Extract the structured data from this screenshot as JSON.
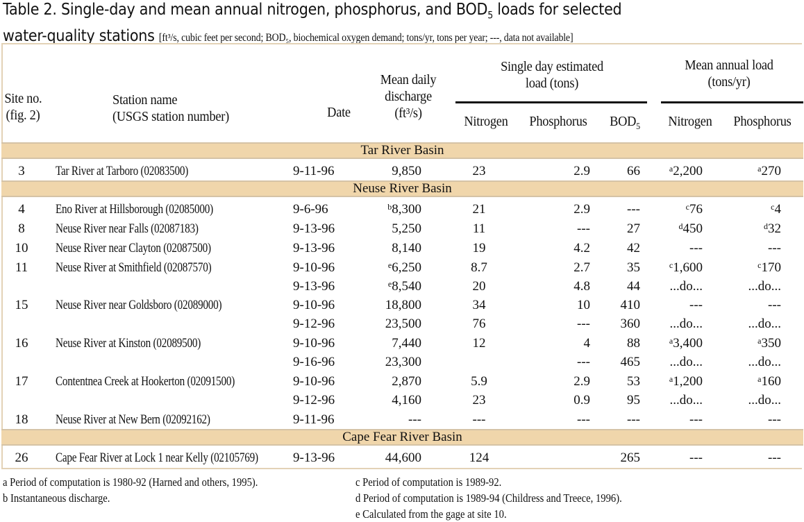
{
  "title": {
    "main_line1": "Table 2. Single-day and mean annual nitrogen, phosphorus, and BOD",
    "main_line1_sub": "5",
    "main_line1_end": " loads for selected",
    "main_line2": "water-quality stations",
    "note": "[ft³/s, cubic feet per second; BOD₅, biochemical oxygen demand; tons/yr, tons per year; ---, data not available]"
  },
  "headers": {
    "site_line1": "Site no.",
    "site_line2": "(fig. 2)",
    "station_line1": "Station name",
    "station_line2": "(USGS station number)",
    "date": "Date",
    "discharge_line1": "Mean daily",
    "discharge_line2": "discharge",
    "discharge_line3": "(ft³/s)",
    "single_day_line1": "Single day estimated",
    "single_day_line2": "load (tons)",
    "mean_annual_line1": "Mean annual load",
    "mean_annual_line2": "(tons/yr)",
    "nitrogen": "Nitrogen",
    "phosphorus": "Phosphorus",
    "bod": "BOD",
    "bod_sub": "5",
    "mean_nitrogen": "Nitrogen",
    "mean_phosphorus": "Phosphorus"
  },
  "rows": [
    {
      "band": "Tar River Basin"
    },
    {
      "site": "3",
      "station": "Tar River at Tarboro (02083500)",
      "date": "9-11-96",
      "discharge": {
        "v": "9,850"
      },
      "nitrogen": "23",
      "phosphorus": "2.9",
      "bod": "66",
      "mean_n": {
        "sup": "a",
        "v": "2,200"
      },
      "mean_p": {
        "sup": "a",
        "v": "270"
      }
    },
    {
      "band": "Neuse River Basin"
    },
    {
      "site": "4",
      "station": "Eno River at Hillsborough (02085000)",
      "date": "9-6-96",
      "discharge": {
        "sup": "b",
        "v": "8,300"
      },
      "nitrogen": "21",
      "phosphorus": "2.9",
      "bod": "---",
      "mean_n": {
        "sup": "c",
        "v": "76"
      },
      "mean_p": {
        "sup": "c",
        "v": "4"
      }
    },
    {
      "site": "8",
      "station": "Neuse River near Falls (02087183)",
      "date": "9-13-96",
      "discharge": {
        "v": "5,250"
      },
      "nitrogen": "11",
      "phosphorus": "---",
      "bod": "27",
      "mean_n": {
        "sup": "d",
        "v": "450"
      },
      "mean_p": {
        "sup": "d",
        "v": "32"
      }
    },
    {
      "site": "10",
      "station": "Neuse River near Clayton (02087500)",
      "date": "9-13-96",
      "discharge": {
        "v": "8,140"
      },
      "nitrogen": "19",
      "phosphorus": "4.2",
      "bod": "42",
      "mean_n": {
        "v": "---"
      },
      "mean_p": {
        "v": "---"
      }
    },
    {
      "site": "11",
      "station": "Neuse River at Smithfield (02087570)",
      "date": "9-10-96",
      "discharge": {
        "sup": "e",
        "v": "6,250"
      },
      "nitrogen": "8.7",
      "phosphorus": "2.7",
      "bod": "35",
      "mean_n": {
        "sup": "c",
        "v": "1,600"
      },
      "mean_p": {
        "sup": "c",
        "v": "170"
      }
    },
    {
      "site": "",
      "station": "",
      "date": "9-13-96",
      "discharge": {
        "sup": "e",
        "v": "8,540"
      },
      "nitrogen": "20",
      "phosphorus": "4.8",
      "bod": "44",
      "mean_n": {
        "v": "...do..."
      },
      "mean_p": {
        "v": "...do..."
      }
    },
    {
      "site": "15",
      "station": "Neuse River near Goldsboro (02089000)",
      "date": "9-10-96",
      "discharge": {
        "v": "18,800"
      },
      "nitrogen": "34",
      "phosphorus": "10",
      "bod": "410",
      "mean_n": {
        "v": "---"
      },
      "mean_p": {
        "v": "---"
      }
    },
    {
      "site": "",
      "station": "",
      "date": "9-12-96",
      "discharge": {
        "v": "23,500"
      },
      "nitrogen": "76",
      "phosphorus": "---",
      "bod": "360",
      "mean_n": {
        "v": "...do..."
      },
      "mean_p": {
        "v": "...do..."
      }
    },
    {
      "site": "16",
      "station": "Neuse River at Kinston (02089500)",
      "date": "9-10-96",
      "discharge": {
        "v": "7,440"
      },
      "nitrogen": "12",
      "phosphorus": "4",
      "bod": "88",
      "mean_n": {
        "sup": "a",
        "v": "3,400"
      },
      "mean_p": {
        "sup": "a",
        "v": "350"
      }
    },
    {
      "site": "",
      "station": "",
      "date": "9-16-96",
      "discharge": {
        "v": "23,300"
      },
      "nitrogen": "",
      "phosphorus": "---",
      "bod": "465",
      "mean_n": {
        "v": "...do..."
      },
      "mean_p": {
        "v": "...do..."
      }
    },
    {
      "site": "17",
      "station": "Contentnea Creek at Hookerton (02091500)",
      "date": "9-10-96",
      "discharge": {
        "v": "2,870"
      },
      "nitrogen": "5.9",
      "phosphorus": "2.9",
      "bod": "53",
      "mean_n": {
        "sup": "a",
        "v": "1,200"
      },
      "mean_p": {
        "sup": "a",
        "v": "160"
      }
    },
    {
      "site": "",
      "station": "",
      "date": "9-12-96",
      "discharge": {
        "v": "4,160"
      },
      "nitrogen": "23",
      "phosphorus": "0.9",
      "bod": "95",
      "mean_n": {
        "v": "...do..."
      },
      "mean_p": {
        "v": "...do..."
      }
    },
    {
      "site": "18",
      "station": "Neuse River at New Bern (02092162)",
      "date": "9-11-96",
      "discharge": {
        "v": "---"
      },
      "nitrogen": "---",
      "phosphorus": "---",
      "bod": "---",
      "mean_n": {
        "v": "---"
      },
      "mean_p": {
        "v": "---"
      }
    },
    {
      "band": "Cape Fear River Basin"
    },
    {
      "site": "26",
      "station": "Cape Fear River at Lock 1 near Kelly (02105769)",
      "date": "9-13-96",
      "discharge": {
        "v": "44,600"
      },
      "nitrogen": "124",
      "phosphorus": "",
      "bod": "265",
      "mean_n": {
        "v": "---"
      },
      "mean_p": {
        "v": "---"
      }
    }
  ],
  "footnotes": {
    "a": "a Period of computation is 1980-92 (Harned and others, 1995).",
    "b": "b Instantaneous discharge.",
    "c": "c Period of computation is 1989-92.",
    "d": "d Period of computation is 1989-94 (Childress and Treece, 1996).",
    "e": "e Calculated from the gage at site 10."
  }
}
